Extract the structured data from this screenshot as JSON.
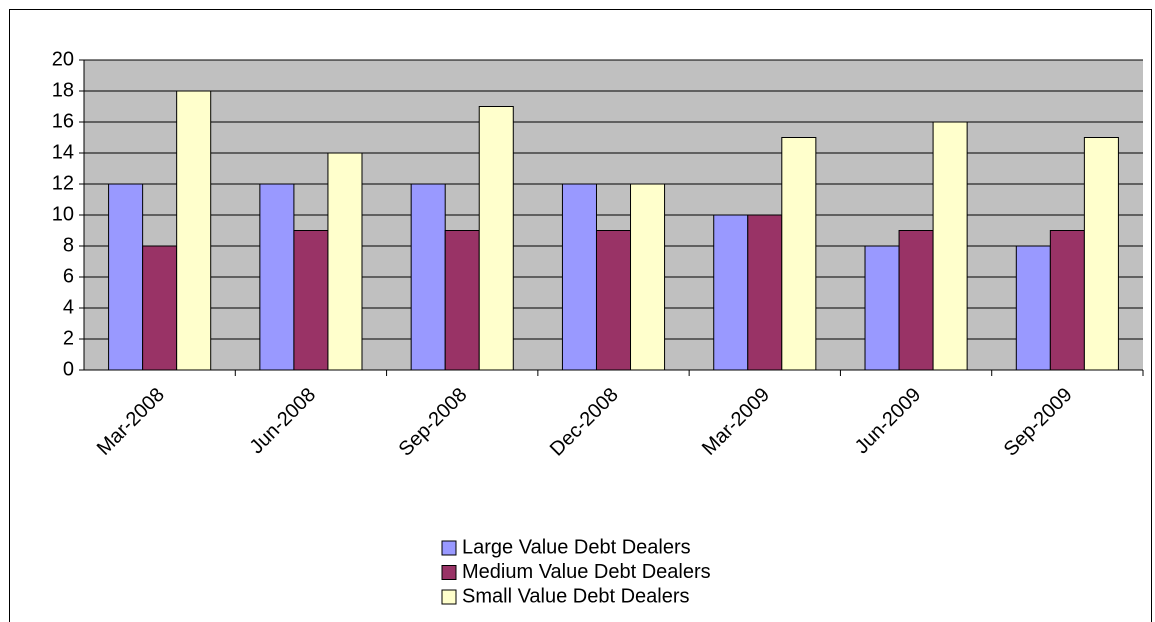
{
  "chart_data": {
    "type": "bar",
    "categories": [
      "Mar-2008",
      "Jun-2008",
      "Sep-2008",
      "Dec-2008",
      "Mar-2009",
      "Jun-2009",
      "Sep-2009"
    ],
    "series": [
      {
        "name": "Large Value Debt Dealers",
        "color": "#9999ff",
        "values": [
          12,
          12,
          12,
          12,
          10,
          8,
          8
        ]
      },
      {
        "name": "Medium Value Debt Dealers",
        "color": "#993366",
        "values": [
          8,
          9,
          9,
          9,
          10,
          9,
          9
        ]
      },
      {
        "name": "Small Value Debt Dealers",
        "color": "#ffffcc",
        "values": [
          18,
          14,
          17,
          12,
          15,
          16,
          15
        ]
      }
    ],
    "ylim": [
      0,
      20
    ],
    "yticks": [
      0,
      2,
      4,
      6,
      8,
      10,
      12,
      14,
      16,
      18,
      20
    ],
    "grid": true,
    "legend": "bottom"
  }
}
